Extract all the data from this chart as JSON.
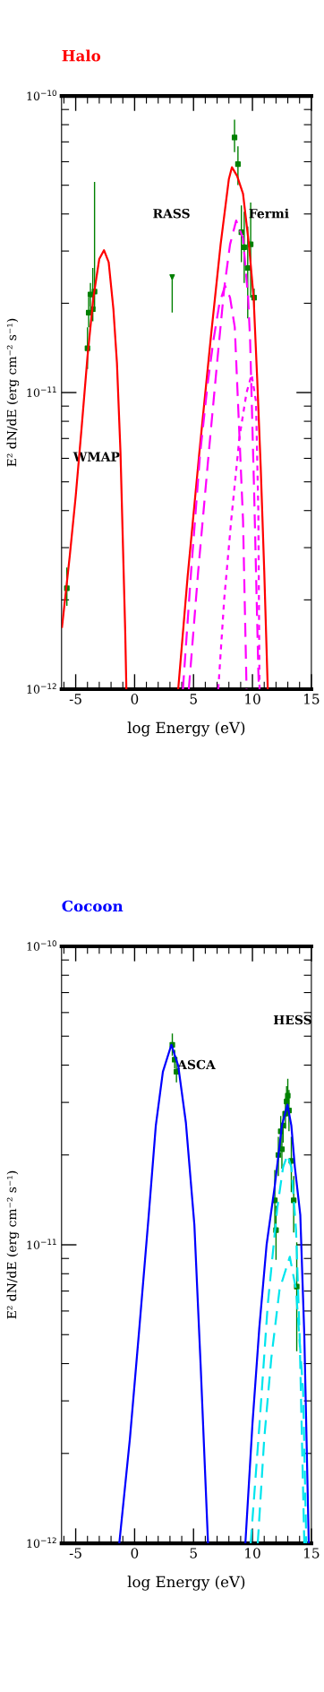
{
  "chart_data": [
    {
      "type": "line",
      "title": "Halo",
      "xlabel": "log Energy (eV)",
      "ylabel": "E² dN/dE (erg cm⁻² s⁻¹)",
      "log": "y",
      "grid": false,
      "legend": false,
      "xlim": [
        -6.2,
        15
      ],
      "xticks": [
        -5,
        0,
        5,
        10,
        15
      ],
      "ylim": [
        1e-12,
        1e-10
      ],
      "yticks": [
        {
          "value": 1e-12,
          "label": "10$^{−12}$"
        },
        {
          "value": 1e-11,
          "label": "10$^{−11}$"
        },
        {
          "value": 1e-10,
          "label": "10$^{−10}$"
        }
      ],
      "series": [
        {
          "color": "#ff0000",
          "line_style": "solid",
          "x": [
            -6.16,
            -5.5,
            -5,
            -4.5,
            -4,
            -3.5,
            -3,
            -2.6,
            -2.2,
            -1.8,
            -1.5,
            -1.2,
            -1.0,
            -0.8,
            -0.7
          ],
          "values": [
            1.62e-12,
            2.82e-12,
            4.47e-12,
            7.59e-12,
            1.32e-11,
            2.09e-11,
            2.82e-11,
            3.02e-11,
            2.75e-11,
            1.91e-11,
            1.26e-11,
            6.31e-12,
            3.16e-12,
            1.58e-12,
            1e-12
          ]
        },
        {
          "color": "#ff0000",
          "line_style": "solid",
          "x": [
            3.7,
            4.5,
            5.5,
            6.5,
            7.3,
            8.0,
            8.26,
            8.7,
            9.2,
            9.7,
            10.1,
            10.4,
            10.7,
            11.0,
            11.3
          ],
          "values": [
            1e-12,
            2.4e-12,
            6.31e-12,
            1.58e-11,
            3.16e-11,
            5.25e-11,
            5.75e-11,
            5.37e-11,
            4.68e-11,
            3.16e-11,
            2.09e-11,
            1.12e-11,
            5.62e-12,
            2.51e-12,
            1e-12
          ]
        },
        {
          "color": "#ff00ff",
          "line_style": "dashed",
          "x": [
            4.1,
            4.8,
            5.55,
            6.2,
            6.7,
            7.2,
            7.68,
            8.1,
            8.5,
            8.9,
            9.2,
            9.5
          ],
          "values": [
            1e-12,
            2.51e-12,
            6.17e-12,
            1.07e-11,
            1.51e-11,
            2e-11,
            2.29e-11,
            2.09e-11,
            1.66e-11,
            7.08e-12,
            3.72e-12,
            1e-12
          ]
        },
        {
          "color": "#ff00ff",
          "line_style": "dashed",
          "x": [
            4.6,
            5.4,
            6.3,
            7.0,
            7.6,
            8.1,
            8.62,
            9.2,
            9.63,
            9.8,
            10.14,
            10.5,
            10.55
          ],
          "values": [
            1e-12,
            2.51e-12,
            6.31e-12,
            1.26e-11,
            2.24e-11,
            3.16e-11,
            3.8e-11,
            3.31e-11,
            2.09e-11,
            1.51e-11,
            4.68e-12,
            1.15e-12,
            1e-12
          ]
        },
        {
          "color": "#ff00ff",
          "line_style": "dotted",
          "x": [
            7.1,
            7.6,
            8.2,
            8.9,
            9.5,
            9.93,
            10.3,
            10.5,
            10.6
          ],
          "values": [
            1e-12,
            2e-12,
            3.72e-12,
            7.08e-12,
            1e-11,
            1.15e-11,
            9.33e-12,
            3.98e-12,
            1e-12
          ]
        },
        {
          "type": "scatter",
          "color": "#008000",
          "marker": "square",
          "x": [
            -5.75,
            -4.0,
            -3.9,
            -3.75,
            -3.55,
            -3.4
          ],
          "values": [
            2.19e-12,
            1.41e-11,
            1.86e-11,
            2.14e-11,
            1.91e-11,
            2.19e-11
          ],
          "errors": [
            [
              1.91e-12,
              2.57e-12
            ],
            [
              1.2e-11,
              1.66e-11
            ],
            [
              1.66e-11,
              2.09e-11
            ],
            [
              1.95e-11,
              2.34e-11
            ],
            [
              1.74e-11,
              2.63e-11
            ],
            [
              1.91e-11,
              5.13e-11
            ]
          ]
        },
        {
          "type": "scatter",
          "color": "#008000",
          "marker": "triangle",
          "x": [
            3.19
          ],
          "values": [
            2.45e-11
          ],
          "errors": [
            [
              1.86e-11,
              2.45e-11
            ]
          ]
        },
        {
          "type": "scatter",
          "color": "#008000",
          "marker": "square",
          "x": [
            8.48,
            8.77,
            9.06,
            9.3,
            9.6,
            9.85,
            10.14
          ],
          "values": [
            7.24e-11,
            5.89e-11,
            3.47e-11,
            3.09e-11,
            2.63e-11,
            3.16e-11,
            2.09e-11
          ],
          "errors": [
            [
              6.46e-11,
              8.32e-11
            ],
            [
              5.01e-11,
              6.76e-11
            ],
            [
              2.75e-11,
              4.27e-11
            ],
            [
              2.34e-11,
              4.07e-11
            ],
            [
              1.78e-11,
              3.63e-11
            ],
            [
              2.09e-11,
              4.37e-11
            ],
            [
              1.86e-11,
              2.24e-11
            ]
          ]
        }
      ],
      "annotations": [
        "WMAP",
        "RASS",
        "Fermi"
      ]
    },
    {
      "type": "line",
      "title": "Cocoon",
      "xlabel": "log Energy (eV)",
      "ylabel": "E² dN/dE (erg cm⁻² s⁻¹)",
      "log": "y",
      "grid": false,
      "legend": false,
      "xlim": [
        -6.2,
        15
      ],
      "xticks": [
        -5,
        0,
        5,
        10,
        15
      ],
      "ylim": [
        1e-12,
        1e-10
      ],
      "yticks": [
        {
          "value": 1e-12,
          "label": "10$^{−12}$"
        },
        {
          "value": 1e-11,
          "label": "10$^{−11}$"
        },
        {
          "value": 1e-10,
          "label": "10$^{−10}$"
        }
      ],
      "series": [
        {
          "color": "#0000ff",
          "line_style": "solid",
          "x": [
            -1.3,
            -0.4,
            0.4,
            1.2,
            1.8,
            2.4,
            3.12,
            3.7,
            4.35,
            5.07,
            5.6,
            6.23
          ],
          "values": [
            1e-12,
            2.24e-12,
            5.25e-12,
            1.26e-11,
            2.51e-11,
            3.8e-11,
            4.68e-11,
            3.98e-11,
            2.57e-11,
            1.17e-11,
            3.98e-12,
            1e-12
          ]
        },
        {
          "color": "#0000ff",
          "line_style": "solid",
          "x": [
            9.4,
            10.0,
            10.58,
            11.2,
            11.9,
            12.5,
            12.97,
            13.3,
            13.6,
            14.06,
            14.4,
            14.78
          ],
          "values": [
            1e-12,
            2.51e-12,
            5.25e-12,
            1e-11,
            1.58e-11,
            2.51e-11,
            2.95e-11,
            2.51e-11,
            1.82e-11,
            1.26e-11,
            5.01e-12,
            1e-12
          ]
        },
        {
          "color": "#00e5ee",
          "line_style": "dashed",
          "x": [
            9.85,
            10.6,
            11.3,
            12.1,
            12.6,
            12.97,
            13.3,
            13.7,
            14.0,
            14.4
          ],
          "values": [
            1e-12,
            2.51e-12,
            6.31e-12,
            1.32e-11,
            1.82e-11,
            2e-11,
            1.82e-11,
            1.12e-11,
            5.01e-12,
            1e-12
          ]
        },
        {
          "color": "#00e5ee",
          "line_style": "dashed",
          "x": [
            10.45,
            11.0,
            11.6,
            12.3,
            13.17,
            13.7,
            14.3,
            14.57
          ],
          "values": [
            1e-12,
            2.24e-12,
            4.17e-12,
            7.08e-12,
            9.12e-12,
            7.08e-12,
            3.24e-12,
            1e-12
          ]
        },
        {
          "type": "scatter",
          "color": "#008000",
          "marker": "square",
          "x": [
            3.2,
            3.4,
            3.55
          ],
          "values": [
            4.68e-11,
            4.17e-11,
            3.8e-11
          ],
          "errors": [
            [
              4.3e-11,
              5.1e-11
            ],
            [
              3.9e-11,
              4.5e-11
            ],
            [
              3.5e-11,
              4.1e-11
            ]
          ]
        },
        {
          "type": "scatter",
          "color": "#008000",
          "marker": "square",
          "x": [
            11.9,
            12.0,
            12.2,
            12.4,
            12.5,
            12.6,
            12.8,
            12.9,
            13.0,
            13.1,
            13.3,
            13.5,
            13.76
          ],
          "values": [
            1.41e-11,
            1.12e-11,
            2e-11,
            2.4e-11,
            2.09e-11,
            2.51e-11,
            2.75e-11,
            3.02e-11,
            3.16e-11,
            2.82e-11,
            1.91e-11,
            1.41e-11,
            7.24e-12
          ],
          "errors": [
            [
              1.12e-11,
              1.78e-11
            ],
            [
              8.9e-12,
              1.35e-11
            ],
            [
              1.7e-11,
              2.3e-11
            ],
            [
              2.1e-11,
              2.7e-11
            ],
            [
              1.8e-11,
              2.4e-11
            ],
            [
              2.2e-11,
              2.8e-11
            ],
            [
              2.45e-11,
              3.1e-11
            ],
            [
              2.7e-11,
              3.4e-11
            ],
            [
              2.8e-11,
              3.6e-11
            ],
            [
              2.4e-11,
              3.3e-11
            ],
            [
              1.5e-11,
              2.3e-11
            ],
            [
              1.1e-11,
              1.7e-11
            ],
            [
              4.4e-12,
              1.02e-11
            ]
          ]
        }
      ],
      "annotations": [
        "ASCA",
        "HESS"
      ]
    }
  ]
}
